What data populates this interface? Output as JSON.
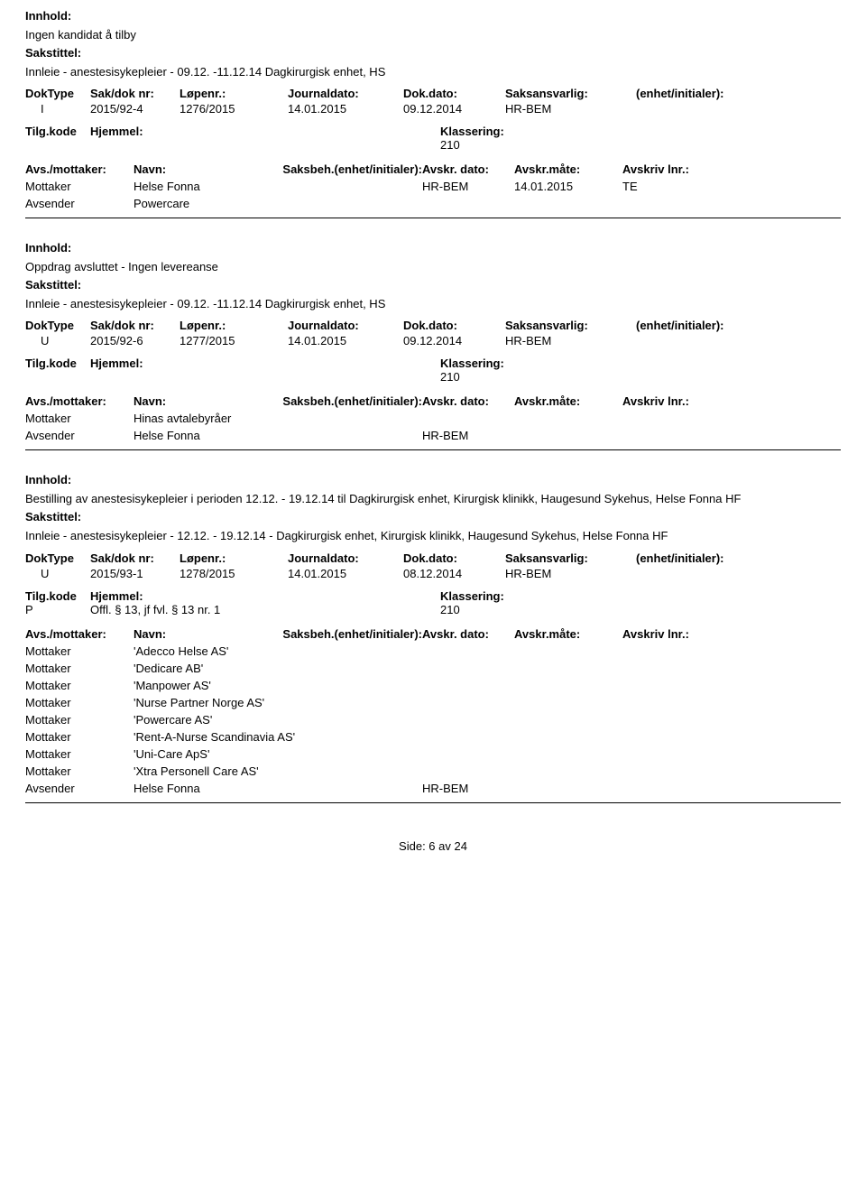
{
  "labels": {
    "innhold": "Innhold:",
    "sakstittel": "Sakstittel:",
    "doktype": "DokType",
    "sakdok": "Sak/dok nr:",
    "lopenr": "Løpenr.:",
    "journaldato": "Journaldato:",
    "dokdato": "Dok.dato:",
    "saksansvarlig": "Saksansvarlig:",
    "enhet": "(enhet/initialer):",
    "tilgkode": "Tilg.kode",
    "hjemmel": "Hjemmel:",
    "klassering": "Klassering:",
    "avsmottaker": "Avs./mottaker:",
    "navn": "Navn:",
    "saksbeh": "Saksbeh.(enhet/initialer):",
    "avskrdato": "Avskr. dato:",
    "avskrmate": "Avskr.måte:",
    "avskrivlnr": "Avskriv lnr.:",
    "mottaker": "Mottaker",
    "avsender": "Avsender"
  },
  "entries": [
    {
      "innhold": "Ingen kandidat å tilby",
      "sakstittel": "Innleie - anestesisykepleier - 09.12. -11.12.14 Dagkirurgisk enhet, HS",
      "doktype": "I",
      "sakdok": "2015/92-4",
      "lopenr": "1276/2015",
      "journaldato": "14.01.2015",
      "dokdato": "09.12.2014",
      "saksansvarlig": "HR-BEM",
      "tilgkode": "",
      "hjemmel": "",
      "klassering": "210",
      "hasAvskrDato": true,
      "parties": [
        {
          "role": "Mottaker",
          "name": "Helse Fonna",
          "saksbeh": "HR-BEM",
          "avskrdato": "14.01.2015",
          "avskrmate": "TE"
        },
        {
          "role": "Avsender",
          "name": "Powercare",
          "saksbeh": "",
          "avskrdato": "",
          "avskrmate": ""
        }
      ]
    },
    {
      "innhold": "Oppdrag avsluttet - Ingen levereanse",
      "sakstittel": "Innleie - anestesisykepleier - 09.12. -11.12.14 Dagkirurgisk enhet, HS",
      "sakstittel2": "",
      "doktype": "U",
      "sakdok": "2015/92-6",
      "lopenr": "1277/2015",
      "journaldato": "14.01.2015",
      "dokdato": "09.12.2014",
      "saksansvarlig": "HR-BEM",
      "tilgkode": "",
      "hjemmel": "",
      "klassering": "210",
      "hasAvskrDato": true,
      "parties": [
        {
          "role": "Mottaker",
          "name": "Hinas avtalebyråer",
          "saksbeh": "",
          "avskrdato": "",
          "avskrmate": ""
        },
        {
          "role": "Avsender",
          "name": "Helse Fonna",
          "saksbeh": "HR-BEM",
          "avskrdato": "",
          "avskrmate": ""
        }
      ]
    },
    {
      "innhold": "Bestilling av anestesisykepleier i perioden 12.12. - 19.12.14 til Dagkirurgisk enhet, Kirurgisk klinikk, Haugesund Sykehus, Helse Fonna HF",
      "sakstittel": "Innleie - anestesisykepleier - 12.12. - 19.12.14 - Dagkirurgisk enhet, Kirurgisk klinikk, Haugesund Sykehus, Helse Fonna HF",
      "doktype": "U",
      "sakdok": "2015/93-1",
      "lopenr": "1278/2015",
      "journaldato": "14.01.2015",
      "dokdato": "08.12.2014",
      "saksansvarlig": "HR-BEM",
      "tilgkode": "P",
      "hjemmel": "Offl. § 13, jf fvl. § 13 nr. 1",
      "klassering": "210",
      "hasAvskrDato": true,
      "parties": [
        {
          "role": "Mottaker",
          "name": "'Adecco Helse AS'",
          "saksbeh": "",
          "avskrdato": "",
          "avskrmate": ""
        },
        {
          "role": "Mottaker",
          "name": "'Dedicare AB'",
          "saksbeh": "",
          "avskrdato": "",
          "avskrmate": ""
        },
        {
          "role": "Mottaker",
          "name": "'Manpower AS'",
          "saksbeh": "",
          "avskrdato": "",
          "avskrmate": ""
        },
        {
          "role": "Mottaker",
          "name": "'Nurse Partner Norge AS'",
          "saksbeh": "",
          "avskrdato": "",
          "avskrmate": ""
        },
        {
          "role": "Mottaker",
          "name": "'Powercare AS'",
          "saksbeh": "",
          "avskrdato": "",
          "avskrmate": ""
        },
        {
          "role": "Mottaker",
          "name": "'Rent-A-Nurse Scandinavia AS'",
          "saksbeh": "",
          "avskrdato": "",
          "avskrmate": ""
        },
        {
          "role": "Mottaker",
          "name": "'Uni-Care ApS'",
          "saksbeh": "",
          "avskrdato": "",
          "avskrmate": ""
        },
        {
          "role": "Mottaker",
          "name": "'Xtra Personell Care AS'",
          "saksbeh": "",
          "avskrdato": "",
          "avskrmate": ""
        },
        {
          "role": "Avsender",
          "name": "Helse Fonna",
          "saksbeh": "HR-BEM",
          "avskrdato": "",
          "avskrmate": ""
        }
      ]
    }
  ],
  "footer": {
    "text": "Side: 6 av 24"
  }
}
